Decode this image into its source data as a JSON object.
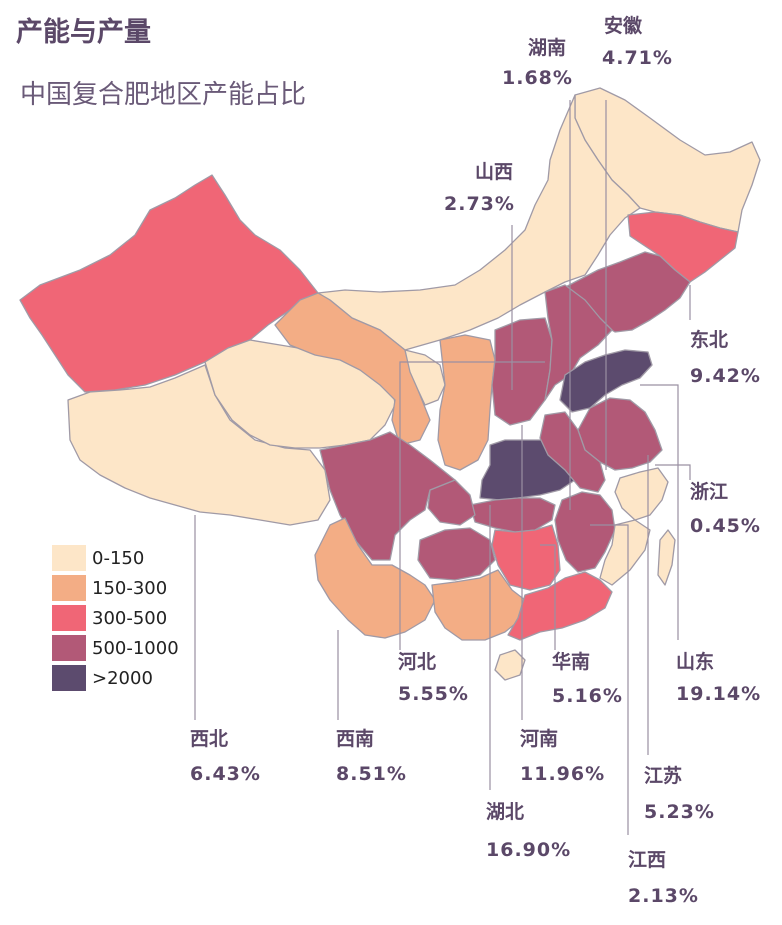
{
  "title": "产能与产量",
  "subtitle": "中国复合肥地区产能占比",
  "legend": [
    {
      "label": "0-150",
      "color": "#fde6c8"
    },
    {
      "label": "150-300",
      "color": "#f3ad85"
    },
    {
      "label": "300-500",
      "color": "#f06676"
    },
    {
      "label": "500-1000",
      "color": "#b25977"
    },
    {
      "label": ">2000",
      "color": "#5c4b6e"
    }
  ],
  "regions": [
    {
      "name": "湖南",
      "percent": "1.68%"
    },
    {
      "name": "安徽",
      "percent": "4.71%"
    },
    {
      "name": "山西",
      "percent": "2.73%"
    },
    {
      "name": "东北",
      "percent": "9.42%"
    },
    {
      "name": "浙江",
      "percent": "0.45%"
    },
    {
      "name": "河北",
      "percent": "5.55%"
    },
    {
      "name": "华南",
      "percent": "5.16%"
    },
    {
      "name": "山东",
      "percent": "19.14%"
    },
    {
      "name": "西北",
      "percent": "6.43%"
    },
    {
      "name": "西南",
      "percent": "8.51%"
    },
    {
      "name": "河南",
      "percent": "11.96%"
    },
    {
      "name": "江苏",
      "percent": "5.23%"
    },
    {
      "name": "湖北",
      "percent": "16.90%"
    },
    {
      "name": "江西",
      "percent": "2.13%"
    }
  ]
}
